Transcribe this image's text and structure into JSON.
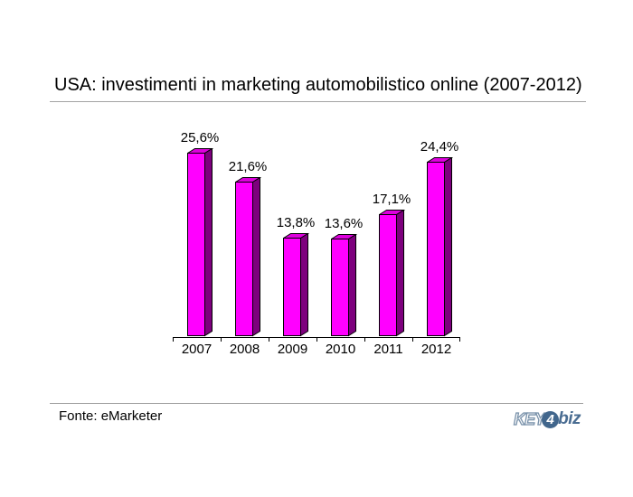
{
  "title": "USA: investimenti in marketing automobilistico online (2007-2012)",
  "footer": {
    "source": "Fonte: eMarketer"
  },
  "logo": {
    "key": "KEY",
    "four": "4",
    "biz": "biz"
  },
  "chart_data": {
    "type": "bar",
    "title": "USA: investimenti in marketing automobilistico online (2007-2012)",
    "categories": [
      "2007",
      "2008",
      "2009",
      "2010",
      "2011",
      "2012"
    ],
    "values": [
      25.6,
      21.6,
      13.8,
      13.6,
      17.1,
      24.4
    ],
    "value_labels": [
      "25,6%",
      "21,6%",
      "13,8%",
      "13,6%",
      "17,1%",
      "24,4%"
    ],
    "unit": "%",
    "xlabel": "",
    "ylabel": "",
    "ylim": [
      0,
      28
    ],
    "grid": false,
    "legend": null,
    "style": "3d-bars",
    "colors": {
      "bar_front": "#FF00FF",
      "bar_top": "#DD00DD",
      "bar_side": "#7D007D",
      "bar_outline": "#000000",
      "rule_gray": "#A3A3A3",
      "logo_blue": "#4A6D92"
    }
  }
}
